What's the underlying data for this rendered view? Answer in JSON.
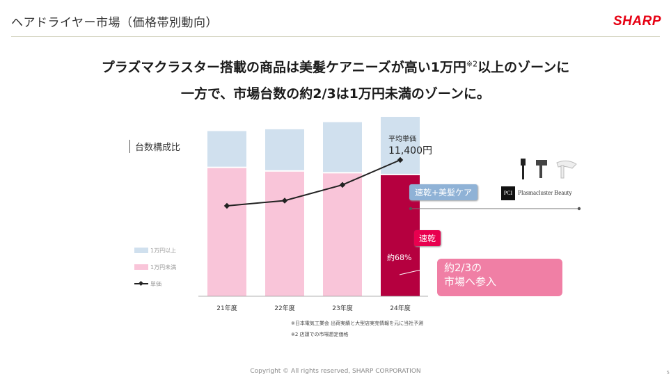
{
  "header": {
    "title": "ヘアドライヤー市場（価格帯別動向）",
    "logo_text": "SHARP",
    "logo_color": "#e60012"
  },
  "headline": {
    "line1": "プラズマクラスター搭載の商品は美髪ケアニーズが高い1万円",
    "line1_sup": "※2",
    "line1_tail": "以上のゾーンに",
    "line2": "一方で、市場台数の約2/3は1万円未満のゾーンに。"
  },
  "chart_data": {
    "type": "bar",
    "stacked": true,
    "axis_title": "台数構成比",
    "categories": [
      "21年度",
      "22年度",
      "23年度",
      "24年度"
    ],
    "series": [
      {
        "name": "1万円未満",
        "values": [
          72,
          70,
          69,
          68
        ],
        "color": "#f9c5d9",
        "highlight_color": "#b5003f"
      },
      {
        "name": "1万円以上",
        "values": [
          20,
          23,
          28,
          32
        ],
        "color": "#d0e0ee"
      },
      {
        "name": "単価",
        "type": "line",
        "values": [
          0.3,
          0.38,
          0.62,
          1.0
        ],
        "color": "#222222"
      }
    ],
    "ylim": [
      0,
      100
    ],
    "line_label": {
      "title": "平均単価",
      "value": "11,400円"
    },
    "bar_label": "約68%",
    "legend": [
      "1万円以上",
      "1万円未満",
      "単価"
    ]
  },
  "tags": {
    "premium": "速乾+美髪ケア",
    "basic": "速乾"
  },
  "callout": {
    "line1": "約2/3の",
    "line2": "市場へ参入"
  },
  "brand": {
    "badge": "PCI",
    "name": "Plasmacluster Beauty"
  },
  "notes": [
    "※日本電気工業会 出荷実績と大型店実売情報を元に当社予測",
    "※2 店頭での市場想定価格"
  ],
  "footer": "Copyright © All rights reserved, SHARP CORPORATION",
  "page_number": "5"
}
